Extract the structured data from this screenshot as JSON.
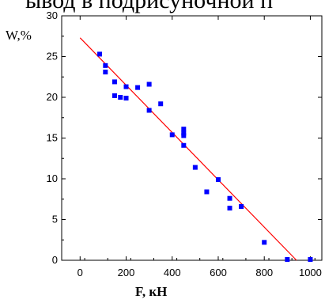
{
  "header_fragment": "ывод в подрисуночной п",
  "chart_data": {
    "type": "scatter",
    "xlabel": "F, кН",
    "ylabel": "W,%",
    "xlim": [
      -80,
      1050
    ],
    "ylim": [
      0,
      30
    ],
    "xticks": [
      0,
      200,
      400,
      600,
      800,
      1000
    ],
    "yticks": [
      0,
      5,
      10,
      15,
      20,
      25,
      30
    ],
    "point_color": "#0000ff",
    "line_color": "#ff0000",
    "points": [
      [
        85,
        25.3
      ],
      [
        110,
        23.9
      ],
      [
        110,
        23.1
      ],
      [
        150,
        21.9
      ],
      [
        150,
        20.2
      ],
      [
        175,
        20.0
      ],
      [
        200,
        19.9
      ],
      [
        200,
        21.3
      ],
      [
        250,
        21.2
      ],
      [
        300,
        21.6
      ],
      [
        300,
        18.4
      ],
      [
        350,
        19.2
      ],
      [
        400,
        15.4
      ],
      [
        450,
        16.1
      ],
      [
        450,
        15.6
      ],
      [
        450,
        15.3
      ],
      [
        450,
        14.1
      ],
      [
        500,
        11.4
      ],
      [
        550,
        8.4
      ],
      [
        600,
        9.9
      ],
      [
        650,
        7.6
      ],
      [
        650,
        6.4
      ],
      [
        700,
        6.6
      ],
      [
        800,
        2.2
      ],
      [
        900,
        0.1
      ],
      [
        1000,
        0.1
      ]
    ],
    "fit_line": {
      "x": [
        0,
        940
      ],
      "y": [
        27.3,
        0
      ]
    }
  }
}
